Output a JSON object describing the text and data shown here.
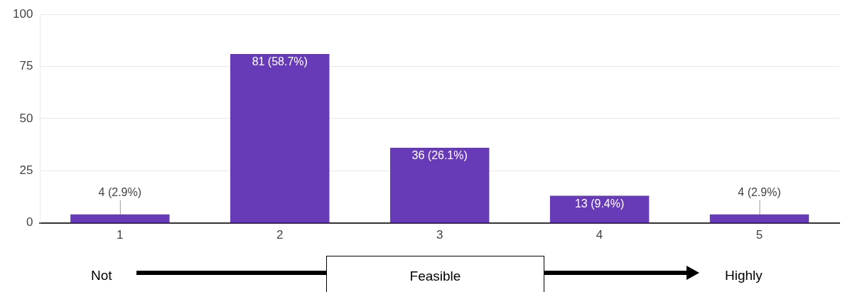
{
  "chart_data": {
    "type": "bar",
    "categories": [
      "1",
      "2",
      "3",
      "4",
      "5"
    ],
    "values": [
      4,
      81,
      36,
      13,
      4
    ],
    "color": "#673ab7",
    "value_labels": [
      "4 (2.9%)",
      "81 (58.7%)",
      "36 (26.1%)",
      "13 (9.4%)",
      "4 (2.9%)"
    ],
    "ylim": [
      0,
      100
    ],
    "yticks": [
      0,
      25,
      50,
      75,
      100
    ],
    "grid": "y",
    "legend": false,
    "annotations": [
      "Not",
      "Feasible",
      "Highly"
    ]
  }
}
